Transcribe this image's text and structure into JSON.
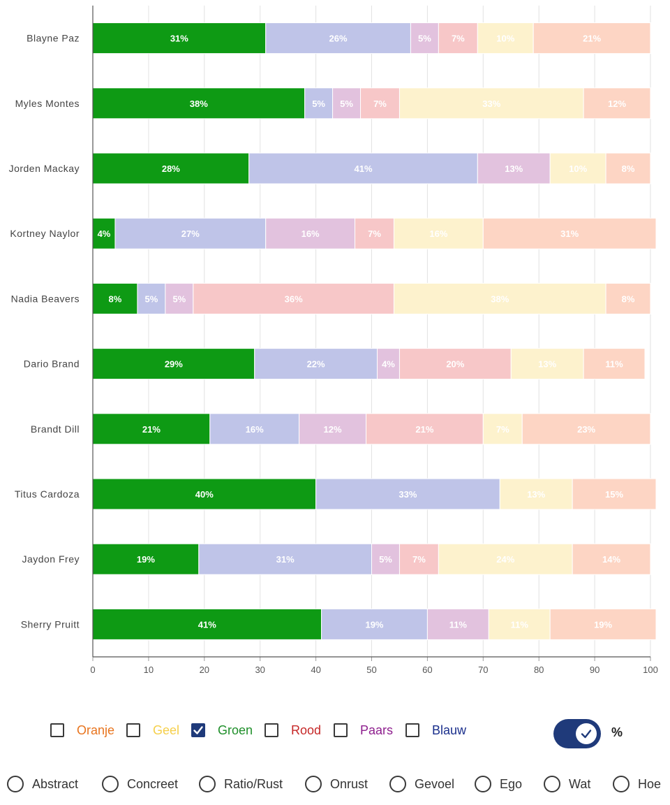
{
  "chart_data": {
    "type": "bar",
    "orientation": "horizontal",
    "stacked": true,
    "categories": [
      "Blayne Paz",
      "Myles Montes",
      "Jorden Mackay",
      "Kortney Naylor",
      "Nadia Beavers",
      "Dario Brand",
      "Brandt Dill",
      "Titus Cardoza",
      "Jaydon Frey",
      "Sherry Pruitt"
    ],
    "series": [
      {
        "color": "#0e9a14",
        "label_color": "#ffffff",
        "values": [
          31,
          38,
          28,
          4,
          8,
          29,
          21,
          40,
          19,
          41
        ],
        "labels": [
          "31%",
          "38%",
          "28%",
          "4%",
          "8%",
          "29%",
          "21%",
          "40%",
          "19%",
          "41%"
        ]
      },
      {
        "color": "#bfc4e8",
        "label_color": "#ffffff",
        "values": [
          26,
          5,
          41,
          27,
          5,
          22,
          16,
          33,
          31,
          19
        ],
        "labels": [
          "26%",
          "5%",
          "41%",
          "27%",
          "5%",
          "22%",
          "16%",
          "33%",
          "31%",
          "19%"
        ]
      },
      {
        "color": "#e2c2de",
        "label_color": "#ffffff",
        "values": [
          5,
          5,
          13,
          16,
          5,
          4,
          12,
          0,
          5,
          11
        ],
        "labels": [
          "5%",
          "5%",
          "13%",
          "16%",
          "5%",
          "4%",
          "12%",
          "",
          "5%",
          "11%"
        ]
      },
      {
        "color": "#f7c7c8",
        "label_color": "#ffffff",
        "values": [
          7,
          7,
          0,
          7,
          36,
          20,
          21,
          0,
          7,
          0
        ],
        "labels": [
          "7%",
          "7%",
          "",
          "7%",
          "36%",
          "20%",
          "21%",
          "",
          "7%",
          ""
        ]
      },
      {
        "color": "#fdf2cd",
        "label_color": "#ffffff",
        "values": [
          10,
          33,
          10,
          16,
          38,
          13,
          7,
          13,
          24,
          11
        ],
        "labels": [
          "10%",
          "33%",
          "10%",
          "16%",
          "38%",
          "13%",
          "7%",
          "13%",
          "24%",
          "11%"
        ]
      },
      {
        "color": "#fdd5c4",
        "label_color": "#ffffff",
        "values": [
          21,
          12,
          8,
          31,
          8,
          11,
          23,
          15,
          14,
          19
        ],
        "labels": [
          "21%",
          "12%",
          "8%",
          "31%",
          "8%",
          "11%",
          "23%",
          "15%",
          "14%",
          "19%"
        ]
      }
    ],
    "xlim": [
      0,
      100
    ],
    "xticks": [
      "0",
      "10",
      "20",
      "30",
      "40",
      "50",
      "60",
      "70",
      "80",
      "90",
      "100"
    ],
    "grid": true
  },
  "legend": {
    "items": [
      {
        "label": "Oranje",
        "color": "#e8741e",
        "checked": false
      },
      {
        "label": "Geel",
        "color": "#f5cf4a",
        "checked": false
      },
      {
        "label": "Groen",
        "color": "#1f8f2a",
        "checked": true
      },
      {
        "label": "Rood",
        "color": "#c62828",
        "checked": false
      },
      {
        "label": "Paars",
        "color": "#8e1f8e",
        "checked": false
      },
      {
        "label": "Blauw",
        "color": "#1a2f8c",
        "checked": false
      }
    ],
    "percent_toggle_on": true,
    "check_icon": "check-icon",
    "percent_icon": "percent-icon",
    "percent_symbol": "%"
  },
  "radios": {
    "items": [
      "Abstract",
      "Concreet",
      "Ratio/Rust",
      "Onrust",
      "Gevoel",
      "Ego",
      "Wat",
      "Hoe"
    ]
  }
}
